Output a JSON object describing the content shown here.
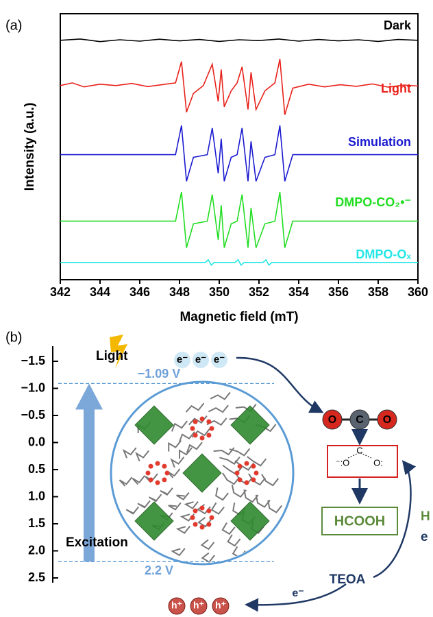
{
  "chart_data": [
    {
      "type": "line",
      "label": "(a)",
      "xlabel": "Magnetic field (mT)",
      "ylabel": "Intensity (a.u.)",
      "xlim": [
        342,
        360
      ],
      "xticks": [
        342,
        344,
        346,
        348,
        350,
        352,
        354,
        356,
        358,
        360
      ],
      "ylim": [
        0,
        10
      ],
      "series": [
        {
          "name": "Dark",
          "color": "#000000",
          "x": [
            342,
            343,
            344,
            345,
            346,
            347,
            348,
            349,
            350,
            351,
            352,
            353,
            354,
            355,
            356,
            357,
            358,
            359,
            360
          ],
          "values": [
            9.0,
            9.05,
            8.95,
            9.02,
            8.97,
            9.04,
            8.98,
            9.03,
            8.96,
            9.02,
            8.99,
            9.05,
            8.97,
            9.03,
            8.98,
            9.02,
            8.96,
            9.03,
            9.0
          ]
        },
        {
          "name": "Light",
          "color": "#e8211a",
          "x": [
            342,
            342.6,
            343.2,
            344,
            344.8,
            345.6,
            346.4,
            347.2,
            347.8,
            348.1,
            348.35,
            348.7,
            349.2,
            349.65,
            349.95,
            350.1,
            350.25,
            350.6,
            350.9,
            351.15,
            351.45,
            351.6,
            351.85,
            352.3,
            352.8,
            353.05,
            353.3,
            353.7,
            354.5,
            355.3,
            356.1,
            356.9,
            357.7,
            358.5,
            359.3,
            360
          ],
          "values": [
            7.3,
            7.4,
            7.25,
            7.35,
            7.3,
            7.38,
            7.26,
            7.34,
            7.4,
            8.2,
            6.3,
            7.0,
            7.3,
            8.1,
            6.7,
            7.9,
            6.5,
            7.1,
            7.4,
            8.0,
            6.4,
            7.8,
            6.4,
            7.1,
            7.4,
            8.3,
            6.2,
            7.2,
            7.35,
            7.25,
            7.33,
            7.27,
            7.36,
            7.24,
            7.32,
            7.28
          ]
        },
        {
          "name": "Simulation",
          "color": "#1a1ad0",
          "x": [
            342,
            347.8,
            348.1,
            348.35,
            348.7,
            349.4,
            349.65,
            349.95,
            350.1,
            350.25,
            350.6,
            350.9,
            351.15,
            351.45,
            351.6,
            351.85,
            352.3,
            352.8,
            353.05,
            353.3,
            353.7,
            360
          ],
          "values": [
            4.7,
            4.7,
            5.8,
            3.7,
            4.6,
            4.7,
            5.7,
            4.0,
            5.3,
            3.7,
            4.6,
            4.7,
            5.7,
            3.7,
            5.2,
            3.7,
            4.6,
            4.7,
            5.8,
            3.7,
            4.7,
            4.7
          ]
        },
        {
          "name": "DMPO-CO₂•⁻",
          "color": "#22dd22",
          "x": [
            342,
            347.8,
            348.1,
            348.35,
            348.7,
            349.4,
            349.65,
            349.95,
            350.1,
            350.25,
            350.6,
            350.9,
            351.15,
            351.45,
            351.6,
            351.85,
            352.3,
            352.8,
            353.05,
            353.3,
            353.7,
            360
          ],
          "values": [
            2.2,
            2.2,
            3.3,
            1.2,
            2.1,
            2.2,
            3.2,
            1.5,
            2.8,
            1.2,
            2.1,
            2.2,
            3.2,
            1.2,
            2.7,
            1.2,
            2.1,
            2.2,
            3.3,
            1.2,
            2.2,
            2.2
          ]
        },
        {
          "name": "DMPO-Oₓ",
          "color": "#22e6e6",
          "x": [
            342,
            349.3,
            349.45,
            349.6,
            349.75,
            350.8,
            350.95,
            351.1,
            351.25,
            352.2,
            352.35,
            352.5,
            352.65,
            360
          ],
          "values": [
            0.65,
            0.65,
            0.75,
            0.55,
            0.65,
            0.65,
            0.75,
            0.55,
            0.65,
            0.65,
            0.75,
            0.55,
            0.65,
            0.65
          ]
        }
      ]
    },
    {
      "type": "diagram",
      "label": "(b)",
      "ylim": [
        -1.5,
        2.5
      ],
      "y_inverted": true,
      "yticks": [
        {
          "value": -1.5,
          "label": "−1.5"
        },
        {
          "value": -1.0,
          "label": "−1.0"
        },
        {
          "value": -0.5,
          "label": "−0.5"
        },
        {
          "value": 0,
          "label": "0.0"
        },
        0.5,
        {
          "value": 1.0,
          "label": "1.0"
        },
        1.5,
        {
          "value": 2.0,
          "label": "2.0"
        },
        2.5
      ],
      "levels": [
        {
          "value": -1.09,
          "label": "−1.09 V"
        },
        {
          "value": 2.2,
          "label": "2.2 V"
        }
      ],
      "light": "Light",
      "excitation": "Excitation",
      "electrons": [
        "e⁻",
        "e⁻",
        "e⁻"
      ],
      "holes": [
        "h⁺",
        "h⁺",
        "h⁺"
      ],
      "co2": [
        "O",
        "C",
        "O"
      ],
      "formate": [
        "⁻:O",
        "C",
        "O:"
      ],
      "product": "HCOOH",
      "donor": "TEOA",
      "donor_electron": "e⁻",
      "cut_texts": [
        "H",
        "e"
      ]
    }
  ]
}
